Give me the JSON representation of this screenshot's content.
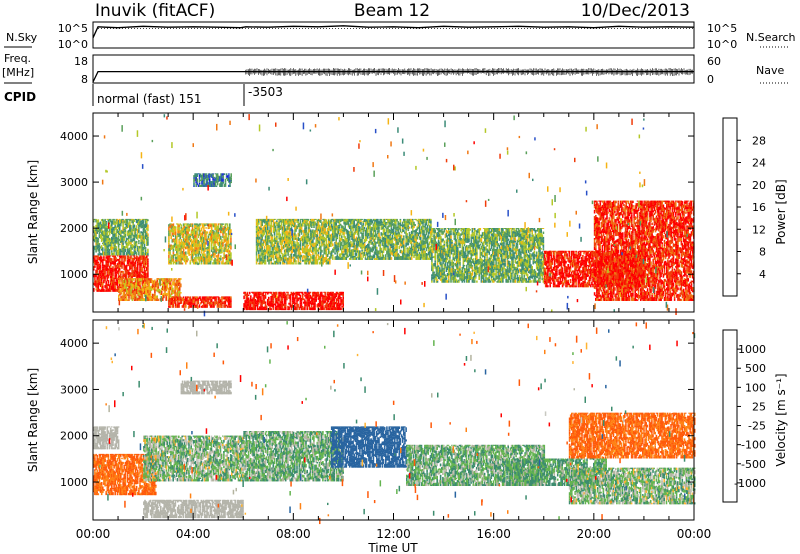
{
  "header": {
    "station": "Inuvik (fitACF)",
    "beam": "Beam 12",
    "date": "10/Dec/2013"
  },
  "colors": {
    "power_scale": [
      "#1414e6",
      "#2850c8",
      "#3c8c78",
      "#5aa05a",
      "#b4c828",
      "#f5b414",
      "#f07814",
      "#f03c0a",
      "#ff0000"
    ],
    "velocity_scale": [
      "#1e3cb4",
      "#2864a0",
      "#3c8c6e",
      "#64b450",
      "#b4b4a0",
      "#c8c8c0",
      "#ffb432",
      "#ff8214",
      "#ff5a0a",
      "#ff0000"
    ],
    "ground_scatter": "#b4b4aa"
  },
  "chart_data": [
    {
      "type": "line",
      "title": "",
      "left_label": "N.Sky",
      "right_label": "N.Search",
      "left_ticks": [
        "10^5",
        "10^0"
      ],
      "right_ticks": [
        "10^5",
        "10^0"
      ],
      "x_range": [
        0,
        24
      ],
      "series": [
        {
          "x": [
            0,
            0.2,
            0.5,
            1,
            2,
            3,
            4,
            5,
            5.9,
            6.1,
            7,
            8,
            9,
            10,
            11,
            12,
            13,
            14,
            15,
            16,
            17,
            18,
            19,
            20,
            21,
            22,
            23,
            24
          ],
          "values": [
            2,
            4.4,
            4.3,
            4.2,
            4.5,
            4.3,
            4.4,
            4.3,
            4.2,
            4.4,
            4.3,
            4.5,
            4.4,
            4.6,
            4.3,
            4.4,
            4.2,
            4.5,
            4.3,
            4.4,
            4.5,
            4.3,
            4.4,
            4.2,
            4.5,
            4.3,
            4.4,
            4.3
          ]
        },
        {
          "x": [
            0.2,
            24
          ],
          "values": [
            4.0,
            4.0
          ]
        }
      ]
    },
    {
      "type": "line",
      "title": "",
      "left_label": "Freq.",
      "left_unit": "[MHz]",
      "right_label": "Nave",
      "left_ticks": [
        "18",
        "8"
      ],
      "right_ticks": [
        "60",
        "0"
      ],
      "cpid_label": "CPID",
      "cpid_values": [
        "normal (fast) 151",
        "-3503"
      ],
      "x_range": [
        0,
        24
      ],
      "series": [
        {
          "name": "Freq.",
          "x": [
            0.2,
            5.9,
            6.1,
            24
          ],
          "values": [
            12.0,
            12.0,
            12.0,
            12.0
          ]
        }
      ]
    },
    {
      "type": "heatmap",
      "title": "",
      "xlabel": "",
      "ylabel": "Slant Range [km]",
      "x_range": [
        0,
        24
      ],
      "ylim": [
        180,
        4500
      ],
      "yticks": [
        1000,
        2000,
        3000,
        4000
      ],
      "colorbar_label": "Power [dB]",
      "colorbar_ticks": [
        "4",
        "8",
        "12",
        "16",
        "20",
        "24",
        "28"
      ],
      "regions": [
        {
          "t0": 0.0,
          "t1": 2.2,
          "r0": 600,
          "r1": 1400,
          "v": 27
        },
        {
          "t0": 0.0,
          "t1": 2.2,
          "r0": 1400,
          "r1": 2200,
          "v": 12
        },
        {
          "t0": 1.0,
          "t1": 3.5,
          "r0": 400,
          "r1": 900,
          "v": 20
        },
        {
          "t0": 3.0,
          "t1": 5.5,
          "r0": 250,
          "r1": 500,
          "v": 26
        },
        {
          "t0": 3.0,
          "t1": 5.5,
          "r0": 1200,
          "r1": 2100,
          "v": 16
        },
        {
          "t0": 4.0,
          "t1": 5.5,
          "r0": 2900,
          "r1": 3200,
          "v": 8
        },
        {
          "t0": 6.0,
          "t1": 10.0,
          "r0": 200,
          "r1": 600,
          "v": 28
        },
        {
          "t0": 6.5,
          "t1": 9.5,
          "r0": 1200,
          "r1": 2200,
          "v": 14
        },
        {
          "t0": 9.5,
          "t1": 13.5,
          "r0": 1300,
          "r1": 2200,
          "v": 12
        },
        {
          "t0": 13.5,
          "t1": 18.0,
          "r0": 800,
          "r1": 2000,
          "v": 12
        },
        {
          "t0": 18.0,
          "t1": 22.0,
          "r0": 700,
          "r1": 1500,
          "v": 27
        },
        {
          "t0": 20.0,
          "t1": 24.0,
          "r0": 400,
          "r1": 2600,
          "v": 26
        }
      ]
    },
    {
      "type": "heatmap",
      "title": "",
      "xlabel": "Time UT",
      "ylabel": "Slant Range [km]",
      "x_range": [
        0,
        24
      ],
      "ylim": [
        180,
        4500
      ],
      "yticks": [
        1000,
        2000,
        3000,
        4000
      ],
      "xticks": [
        "00:00",
        "04:00",
        "08:00",
        "12:00",
        "16:00",
        "20:00",
        "00:00"
      ],
      "colorbar_label": "Velocity [m s⁻¹]",
      "colorbar_ticks": [
        "1000",
        "500",
        "100",
        "25",
        "-25",
        "-100",
        "-500",
        "-1000"
      ],
      "regions": [
        {
          "t0": 0.0,
          "t1": 1.0,
          "r0": 1700,
          "r1": 2200,
          "v": 0,
          "g": true
        },
        {
          "t0": 0.0,
          "t1": 2.5,
          "r0": 700,
          "r1": 1600,
          "v": -300
        },
        {
          "t0": 2.0,
          "t1": 6.0,
          "r0": 200,
          "r1": 600,
          "v": 0,
          "g": true
        },
        {
          "t0": 2.0,
          "t1": 6.0,
          "r0": 1000,
          "r1": 2000,
          "v": 150
        },
        {
          "t0": 3.5,
          "t1": 5.5,
          "r0": 2900,
          "r1": 3200,
          "v": 0,
          "g": true
        },
        {
          "t0": 6.0,
          "t1": 10.0,
          "r0": 1000,
          "r1": 2100,
          "v": 200
        },
        {
          "t0": 9.5,
          "t1": 12.5,
          "r0": 1300,
          "r1": 2200,
          "v": 700
        },
        {
          "t0": 12.5,
          "t1": 18.0,
          "r0": 900,
          "r1": 1800,
          "v": 200
        },
        {
          "t0": 16.5,
          "t1": 20.5,
          "r0": 900,
          "r1": 1500,
          "v": 250
        },
        {
          "t0": 19.0,
          "t1": 24.0,
          "r0": 1500,
          "r1": 2500,
          "v": -300
        },
        {
          "t0": 19.0,
          "t1": 24.0,
          "r0": 500,
          "r1": 1300,
          "v": 150
        }
      ]
    }
  ]
}
